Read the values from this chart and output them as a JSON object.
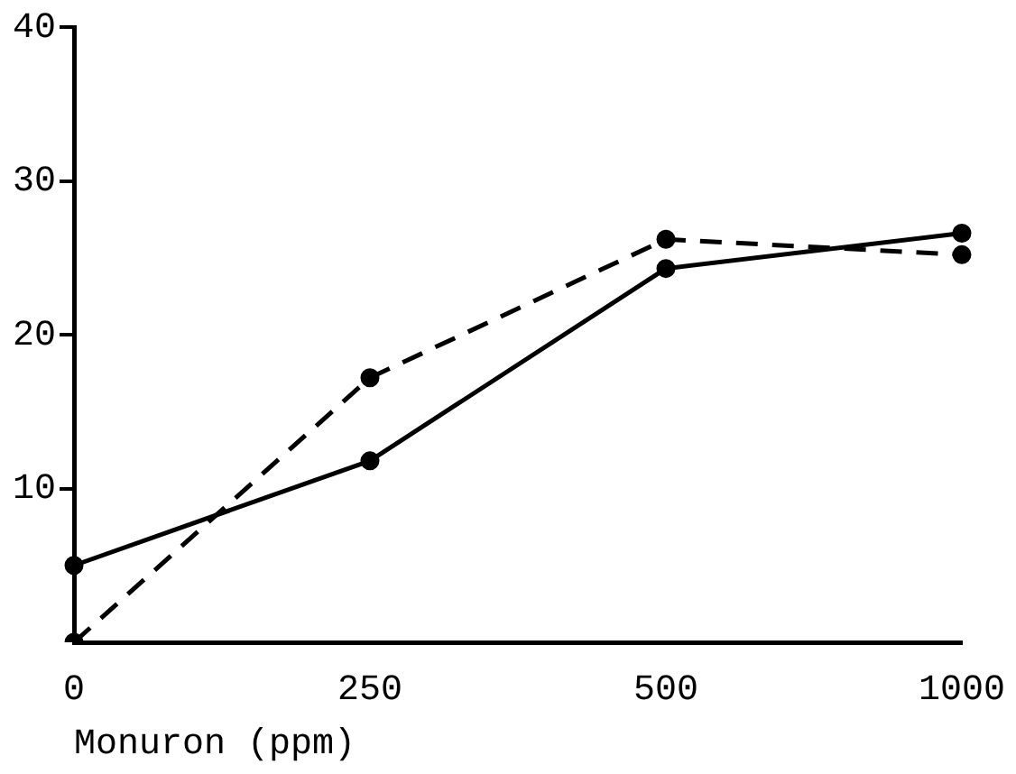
{
  "chart_data": {
    "type": "line",
    "xlabel": "Monuron (ppm)",
    "categories": [
      "0",
      "250",
      "500",
      "1000"
    ],
    "series": [
      {
        "color": "#000000",
        "line_style": "solid",
        "values": [
          5.0,
          11.8,
          24.3,
          26.6
        ]
      },
      {
        "color": "#000000",
        "line_style": "dashed",
        "values": [
          0,
          17.2,
          26.2,
          25.2
        ]
      }
    ],
    "ylim": [
      0,
      40
    ],
    "yticks": [
      10,
      20,
      30,
      40
    ],
    "grid": false,
    "legend": false,
    "marker": "circle"
  }
}
